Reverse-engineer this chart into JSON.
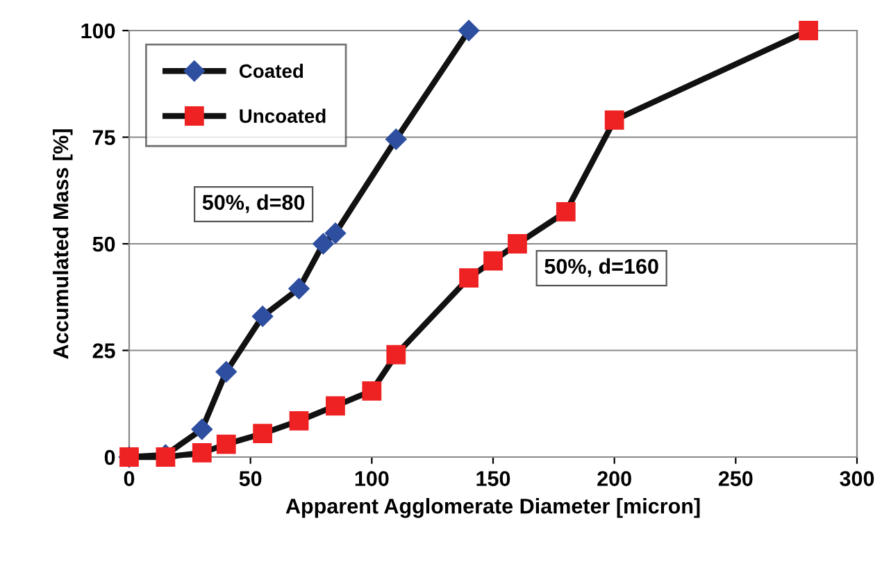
{
  "chart_data": {
    "type": "line",
    "xlabel": "Apparent Agglomerate Diameter [micron]",
    "ylabel": "Accumulated Mass [%]",
    "xlim": [
      0,
      300
    ],
    "xticks": [
      0,
      50,
      100,
      150,
      200,
      250,
      300
    ],
    "ylim": [
      0,
      100
    ],
    "yticks": [
      0,
      25,
      50,
      75,
      100
    ],
    "grid": "y",
    "legend": "top left",
    "line_style": "solid",
    "series": [
      {
        "name": "Coated",
        "color": "#2e4fa0",
        "marker": "diamond",
        "x": [
          0,
          15,
          30,
          40,
          55,
          70,
          80,
          85,
          110,
          140
        ],
        "values": [
          0,
          0.5,
          6.5,
          20,
          33,
          39.5,
          50,
          52.5,
          74.5,
          100
        ]
      },
      {
        "name": "Uncoated",
        "color": "#ee2222",
        "marker": "square",
        "x": [
          0,
          15,
          30,
          40,
          55,
          70,
          85,
          100,
          110,
          140,
          150,
          160,
          180,
          200,
          280
        ],
        "values": [
          0,
          0,
          1,
          3,
          5.5,
          8.5,
          12,
          15.5,
          24,
          42,
          46,
          50,
          57.5,
          79,
          100
        ]
      }
    ],
    "annotations": [
      "50%, d=80",
      "50%, d=160"
    ]
  }
}
